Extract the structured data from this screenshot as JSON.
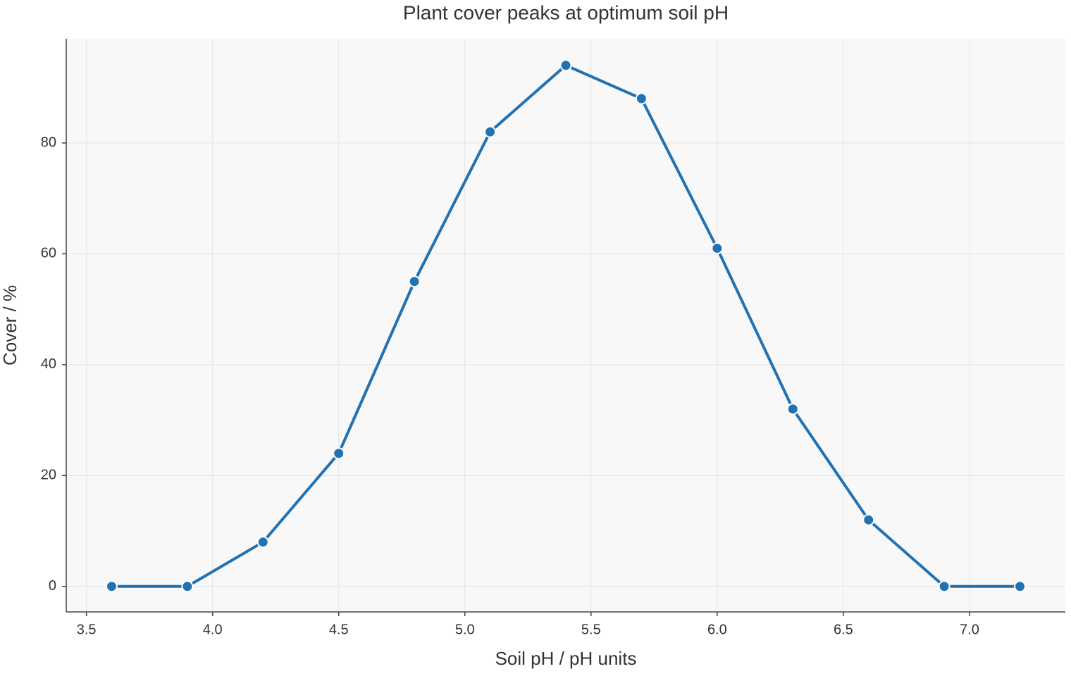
{
  "chart_data": {
    "type": "line",
    "title": "Plant cover peaks at optimum soil pH",
    "x_label": "Soil pH / pH units",
    "y_label": "Cover / %",
    "x": [
      3.6,
      3.9,
      4.2,
      4.5,
      4.8,
      5.1,
      5.4,
      5.7,
      6.0,
      6.3,
      6.6,
      6.9,
      7.2
    ],
    "series": [
      {
        "name": "Cover",
        "color": "#2271b1",
        "values": [
          0,
          0,
          8,
          24,
          55,
          82,
          94,
          88,
          61,
          32,
          12,
          0,
          0
        ]
      }
    ],
    "xlim": [
      3.42,
      7.38
    ],
    "ylim": [
      -4.6,
      98.8
    ],
    "xticks": [
      3.5,
      {
        "value": 4.0,
        "label": "4.0"
      },
      4.5,
      {
        "value": 5.0,
        "label": "5.0"
      },
      5.5,
      {
        "value": 6.0,
        "label": "6.0"
      },
      6.5,
      {
        "value": 7.0,
        "label": "7.0"
      }
    ],
    "yticks": [
      0,
      20,
      40,
      60,
      80
    ],
    "grid": true
  }
}
